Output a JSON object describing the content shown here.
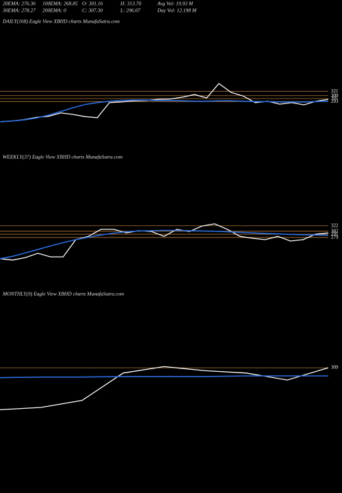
{
  "header": {
    "row1": [
      "20EMA: 276.36",
      "100EMA: 268.85",
      "O: 301.16",
      "H: 313.70",
      "Avg Vol: 19.93  M"
    ],
    "row2": [
      "30EMA: 278.27",
      "200EMA: 0",
      "C: 307.30",
      "L: 296.07",
      "Day Vol: 12.198  M"
    ]
  },
  "chart_data": [
    {
      "type": "line",
      "title": "DAILY(168) Eagle   View  XBHD charts MunafaSutra.com",
      "ylim": [
        150,
        495
      ],
      "yticks": [
        321,
        309,
        301,
        293
      ],
      "grid": true,
      "grid_color": "#b5783a",
      "series": [
        {
          "color": "#ffffff",
          "values": [
            238,
            240,
            244,
            250,
            253,
            262,
            258,
            252,
            249,
            290,
            292,
            295,
            296,
            299,
            300,
            305,
            312,
            303,
            342,
            318,
            308,
            290,
            294,
            286,
            290,
            284,
            294,
            299
          ]
        },
        {
          "color": "#2a6de0",
          "values": [
            238,
            240,
            243,
            248,
            256,
            266,
            276,
            285,
            290,
            294,
            296,
            297,
            297,
            296,
            296,
            295,
            294,
            294,
            295,
            295,
            294,
            293,
            293,
            292,
            292,
            292,
            293,
            294
          ]
        }
      ]
    },
    {
      "type": "line",
      "title": "WEEKLY(37) Eagle   View  XBHD charts MunafaSutra.com",
      "ylim": [
        95,
        535
      ],
      "yticks": [
        322,
        302,
        291,
        279
      ],
      "grid": true,
      "grid_color": "#b5783a",
      "series": [
        {
          "color": "#ffffff",
          "values": [
            201,
            196,
            205,
            221,
            208,
            208,
            271,
            283,
            309,
            309,
            296,
            304,
            301,
            283,
            309,
            301,
            321,
            329,
            309,
            283,
            276,
            271,
            283,
            266,
            271,
            291,
            296
          ]
        },
        {
          "color": "#2a6de0",
          "values": [
            201,
            210,
            222,
            235,
            248,
            260,
            271,
            280,
            288,
            295,
            300,
            303,
            304,
            305,
            305,
            304,
            303,
            302,
            300,
            298,
            296,
            294,
            292,
            290,
            289,
            288,
            287
          ]
        }
      ]
    },
    {
      "type": "line",
      "title": "MONTHLY(9) Eagle   View  XBHD charts MunafaSutra.com",
      "ylim": [
        100,
        429
      ],
      "yticks": [
        309
      ],
      "grid": true,
      "grid_color": "#b5783a",
      "series": [
        {
          "color": "#ffffff",
          "values": [
            237,
            241,
            253,
            300,
            311,
            304,
            300,
            288,
            309
          ]
        },
        {
          "color": "#2a6de0",
          "values": [
            292,
            293,
            293,
            294,
            294,
            294,
            295,
            295,
            295
          ]
        }
      ]
    }
  ]
}
